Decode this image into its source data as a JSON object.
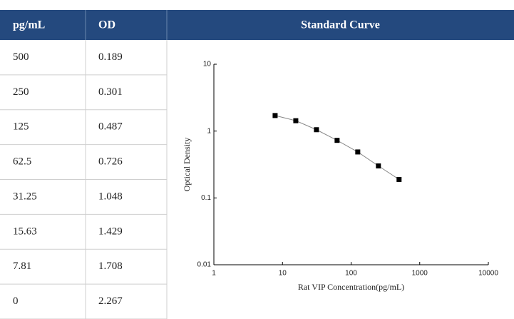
{
  "table": {
    "header": [
      "pg/mL",
      "OD",
      "Standard Curve"
    ],
    "rows": [
      [
        "500",
        "0.189"
      ],
      [
        "250",
        "0.301"
      ],
      [
        "125",
        "0.487"
      ],
      [
        "62.5",
        "0.726"
      ],
      [
        "31.25",
        "1.048"
      ],
      [
        "15.63",
        "1.429"
      ],
      [
        "7.81",
        "1.708"
      ],
      [
        "0",
        "2.267"
      ]
    ]
  },
  "chart_data": {
    "type": "line",
    "log_x": true,
    "log_y": true,
    "x_label": "Rat VIP  Concentration(pg/mL)",
    "y_label": "Optical Density",
    "x": [
      500,
      250,
      125,
      62.5,
      31.25,
      15.63,
      7.81
    ],
    "values": [
      0.189,
      0.301,
      0.487,
      0.726,
      1.048,
      1.429,
      1.708
    ],
    "color": "#000000",
    "line_color": "#888888",
    "xlim": [
      1,
      10000
    ],
    "xticks": [
      1,
      10,
      100,
      1000,
      10000
    ],
    "ylim": [
      0.01,
      10
    ],
    "yticks": [
      0.01,
      0.1,
      1,
      10
    ]
  }
}
